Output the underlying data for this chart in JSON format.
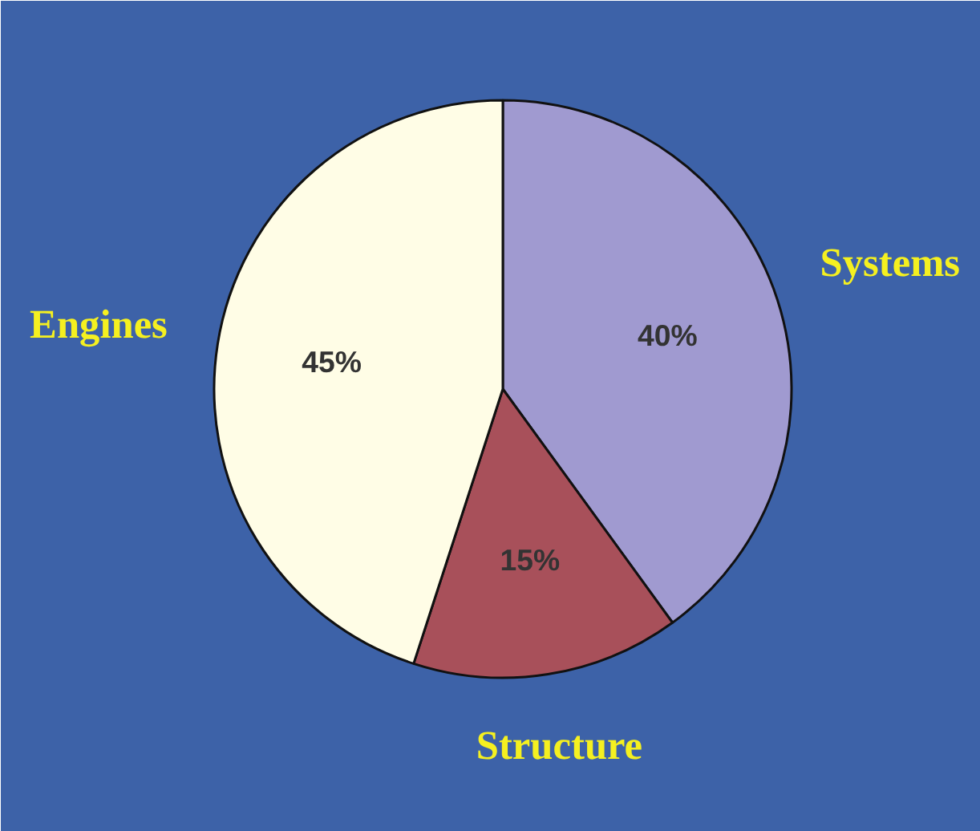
{
  "chart_data": {
    "type": "pie",
    "categories": [
      "Systems",
      "Structure",
      "Engines"
    ],
    "values": [
      40,
      15,
      45
    ],
    "colors": [
      "#a09ad0",
      "#a8505a",
      "#fffde6"
    ],
    "value_labels": [
      "40%",
      "15%",
      "45%"
    ]
  }
}
